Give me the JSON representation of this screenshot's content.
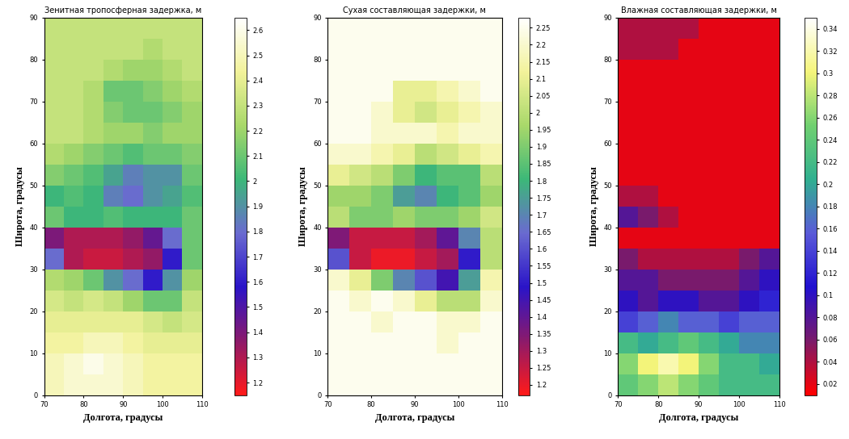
{
  "chart_data": [
    {
      "type": "heatmap",
      "title": "Зенитная тропосферная задержка, м",
      "x_label": "Долгота, градусы",
      "y_label": "Широта, градусы",
      "x_edges": [
        70,
        75,
        80,
        85,
        90,
        95,
        100,
        105,
        110
      ],
      "y_edges": [
        0,
        5,
        10,
        15,
        20,
        25,
        30,
        35,
        40,
        45,
        50,
        55,
        60,
        65,
        70,
        75,
        80,
        85,
        90
      ],
      "xlim": [
        70,
        110
      ],
      "ylim": [
        0,
        90
      ],
      "xticks": [
        70,
        80,
        90,
        100,
        110
      ],
      "yticks": [
        0,
        10,
        20,
        30,
        40,
        50,
        60,
        70,
        80,
        90
      ],
      "cells": [
        [
          2.5,
          2.55,
          2.55,
          2.55,
          2.5,
          2.45,
          2.45,
          2.45
        ],
        [
          2.5,
          2.55,
          2.6,
          2.55,
          2.5,
          2.45,
          2.45,
          2.45
        ],
        [
          2.45,
          2.45,
          2.5,
          2.5,
          2.45,
          2.4,
          2.4,
          2.4
        ],
        [
          2.4,
          2.4,
          2.4,
          2.4,
          2.4,
          2.35,
          2.3,
          2.35
        ],
        [
          2.35,
          2.3,
          2.35,
          2.3,
          2.2,
          2.1,
          2.1,
          2.3
        ],
        [
          2.25,
          2.2,
          2.1,
          1.9,
          1.8,
          1.6,
          1.9,
          2.2
        ],
        [
          1.8,
          1.3,
          1.25,
          1.25,
          1.3,
          1.35,
          1.6,
          2.1
        ],
        [
          1.4,
          1.3,
          1.3,
          1.3,
          1.35,
          1.45,
          1.8,
          2.1
        ],
        [
          2.1,
          2.0,
          2.0,
          2.05,
          2.0,
          2.0,
          2.0,
          2.1
        ],
        [
          2.0,
          2.05,
          2.0,
          1.85,
          1.8,
          1.9,
          1.95,
          2.05
        ],
        [
          2.15,
          2.1,
          2.05,
          1.95,
          1.85,
          1.9,
          1.9,
          2.1
        ],
        [
          2.25,
          2.2,
          2.15,
          2.1,
          2.05,
          2.1,
          2.1,
          2.15
        ],
        [
          2.3,
          2.3,
          2.25,
          2.2,
          2.2,
          2.15,
          2.2,
          2.2
        ],
        [
          2.3,
          2.3,
          2.25,
          2.15,
          2.1,
          2.1,
          2.15,
          2.2
        ],
        [
          2.3,
          2.3,
          2.25,
          2.1,
          2.1,
          2.15,
          2.2,
          2.25
        ],
        [
          2.3,
          2.3,
          2.3,
          2.25,
          2.2,
          2.2,
          2.25,
          2.3
        ],
        [
          2.3,
          2.3,
          2.3,
          2.3,
          2.3,
          2.25,
          2.3,
          2.3
        ],
        [
          2.3,
          2.3,
          2.3,
          2.3,
          2.3,
          2.3,
          2.3,
          2.3
        ]
      ],
      "colorbar_range": [
        1.15,
        2.65
      ],
      "colorbar_ticks": [
        1.2,
        1.3,
        1.4,
        1.5,
        1.6,
        1.7,
        1.8,
        1.9,
        2,
        2.1,
        2.2,
        2.3,
        2.4,
        2.5,
        2.6
      ]
    },
    {
      "type": "heatmap",
      "title": "Сухая составляющая задержки, м",
      "x_label": "Долгота, градусы",
      "y_label": "Широта, градусы",
      "x_edges": [
        70,
        75,
        80,
        85,
        90,
        95,
        100,
        105,
        110
      ],
      "y_edges": [
        0,
        5,
        10,
        15,
        20,
        25,
        30,
        35,
        40,
        45,
        50,
        55,
        60,
        65,
        70,
        75,
        80,
        85,
        90
      ],
      "xlim": [
        70,
        110
      ],
      "ylim": [
        0,
        90
      ],
      "xticks": [
        70,
        80,
        90,
        100,
        110
      ],
      "yticks": [
        0,
        10,
        20,
        30,
        40,
        50,
        60,
        70,
        80,
        90
      ],
      "cells": [
        [
          2.25,
          2.25,
          2.25,
          2.25,
          2.25,
          2.25,
          2.25,
          2.25
        ],
        [
          2.25,
          2.25,
          2.25,
          2.25,
          2.25,
          2.25,
          2.25,
          2.25
        ],
        [
          2.25,
          2.25,
          2.25,
          2.25,
          2.25,
          2.2,
          2.25,
          2.25
        ],
        [
          2.25,
          2.25,
          2.2,
          2.25,
          2.25,
          2.2,
          2.2,
          2.25
        ],
        [
          2.25,
          2.2,
          2.25,
          2.2,
          2.1,
          2.0,
          2.0,
          2.2
        ],
        [
          2.2,
          2.1,
          1.9,
          1.7,
          1.6,
          1.45,
          1.75,
          2.15
        ],
        [
          1.6,
          1.25,
          1.2,
          1.2,
          1.25,
          1.3,
          1.5,
          2.0
        ],
        [
          1.35,
          1.25,
          1.25,
          1.25,
          1.3,
          1.4,
          1.7,
          2.0
        ],
        [
          2.0,
          1.9,
          1.9,
          1.95,
          1.9,
          1.9,
          1.95,
          2.05
        ],
        [
          1.95,
          1.95,
          1.9,
          1.75,
          1.7,
          1.8,
          1.85,
          1.95
        ],
        [
          2.1,
          2.05,
          2.0,
          1.9,
          1.8,
          1.85,
          1.85,
          2.0
        ],
        [
          2.2,
          2.2,
          2.15,
          2.1,
          2.0,
          2.05,
          2.1,
          2.15
        ],
        [
          2.25,
          2.25,
          2.2,
          2.2,
          2.2,
          2.15,
          2.2,
          2.2
        ],
        [
          2.25,
          2.25,
          2.2,
          2.1,
          2.05,
          2.1,
          2.15,
          2.2
        ],
        [
          2.25,
          2.25,
          2.25,
          2.1,
          2.1,
          2.15,
          2.2,
          2.25
        ],
        [
          2.25,
          2.25,
          2.25,
          2.25,
          2.25,
          2.25,
          2.25,
          2.25
        ],
        [
          2.25,
          2.25,
          2.25,
          2.25,
          2.25,
          2.25,
          2.25,
          2.25
        ],
        [
          2.25,
          2.25,
          2.25,
          2.25,
          2.25,
          2.25,
          2.25,
          2.25
        ]
      ],
      "colorbar_range": [
        1.17,
        2.28
      ],
      "colorbar_ticks": [
        1.2,
        1.25,
        1.3,
        1.35,
        1.4,
        1.45,
        1.5,
        1.55,
        1.6,
        1.65,
        1.7,
        1.75,
        1.8,
        1.85,
        1.9,
        1.95,
        2,
        2.05,
        2.1,
        2.15,
        2.2,
        2.25
      ]
    },
    {
      "type": "heatmap",
      "title": "Влажная составляющая задержки, м",
      "x_label": "Долгота, градусы",
      "y_label": "Широта, градусы",
      "x_edges": [
        70,
        75,
        80,
        85,
        90,
        95,
        100,
        105,
        110
      ],
      "y_edges": [
        0,
        5,
        10,
        15,
        20,
        25,
        30,
        35,
        40,
        45,
        50,
        55,
        60,
        65,
        70,
        75,
        80,
        85,
        90
      ],
      "xlim": [
        70,
        110
      ],
      "ylim": [
        0,
        90
      ],
      "xticks": [
        70,
        80,
        90,
        100,
        110
      ],
      "yticks": [
        0,
        10,
        20,
        30,
        40,
        50,
        60,
        70,
        80,
        90
      ],
      "cells": [
        [
          0.24,
          0.26,
          0.28,
          0.26,
          0.24,
          0.22,
          0.22,
          0.22
        ],
        [
          0.26,
          0.3,
          0.32,
          0.3,
          0.26,
          0.22,
          0.22,
          0.2
        ],
        [
          0.22,
          0.2,
          0.22,
          0.24,
          0.22,
          0.2,
          0.18,
          0.18
        ],
        [
          0.14,
          0.16,
          0.18,
          0.16,
          0.16,
          0.14,
          0.16,
          0.16
        ],
        [
          0.1,
          0.08,
          0.1,
          0.1,
          0.08,
          0.08,
          0.1,
          0.12
        ],
        [
          0.08,
          0.08,
          0.06,
          0.06,
          0.06,
          0.06,
          0.08,
          0.1
        ],
        [
          0.06,
          0.04,
          0.04,
          0.04,
          0.04,
          0.04,
          0.06,
          0.08
        ],
        [
          0.02,
          0.02,
          0.02,
          0.02,
          0.02,
          0.02,
          0.02,
          0.02
        ],
        [
          0.08,
          0.06,
          0.04,
          0.02,
          0.02,
          0.02,
          0.02,
          0.02
        ],
        [
          0.04,
          0.04,
          0.02,
          0.02,
          0.02,
          0.02,
          0.02,
          0.02
        ],
        [
          0.02,
          0.02,
          0.02,
          0.02,
          0.02,
          0.02,
          0.02,
          0.02
        ],
        [
          0.02,
          0.02,
          0.02,
          0.02,
          0.02,
          0.02,
          0.02,
          0.02
        ],
        [
          0.02,
          0.02,
          0.02,
          0.02,
          0.02,
          0.02,
          0.02,
          0.02
        ],
        [
          0.02,
          0.02,
          0.02,
          0.02,
          0.02,
          0.02,
          0.02,
          0.02
        ],
        [
          0.02,
          0.02,
          0.02,
          0.02,
          0.02,
          0.02,
          0.02,
          0.02
        ],
        [
          0.02,
          0.02,
          0.02,
          0.02,
          0.02,
          0.02,
          0.02,
          0.02
        ],
        [
          0.04,
          0.04,
          0.04,
          0.02,
          0.02,
          0.02,
          0.02,
          0.02
        ],
        [
          0.04,
          0.04,
          0.04,
          0.04,
          0.02,
          0.02,
          0.02,
          0.02
        ]
      ],
      "colorbar_range": [
        0.01,
        0.35
      ],
      "colorbar_ticks": [
        0.02,
        0.04,
        0.06,
        0.08,
        0.1,
        0.12,
        0.14,
        0.16,
        0.18,
        0.2,
        0.22,
        0.24,
        0.26,
        0.28,
        0.3,
        0.32,
        0.34
      ]
    }
  ]
}
